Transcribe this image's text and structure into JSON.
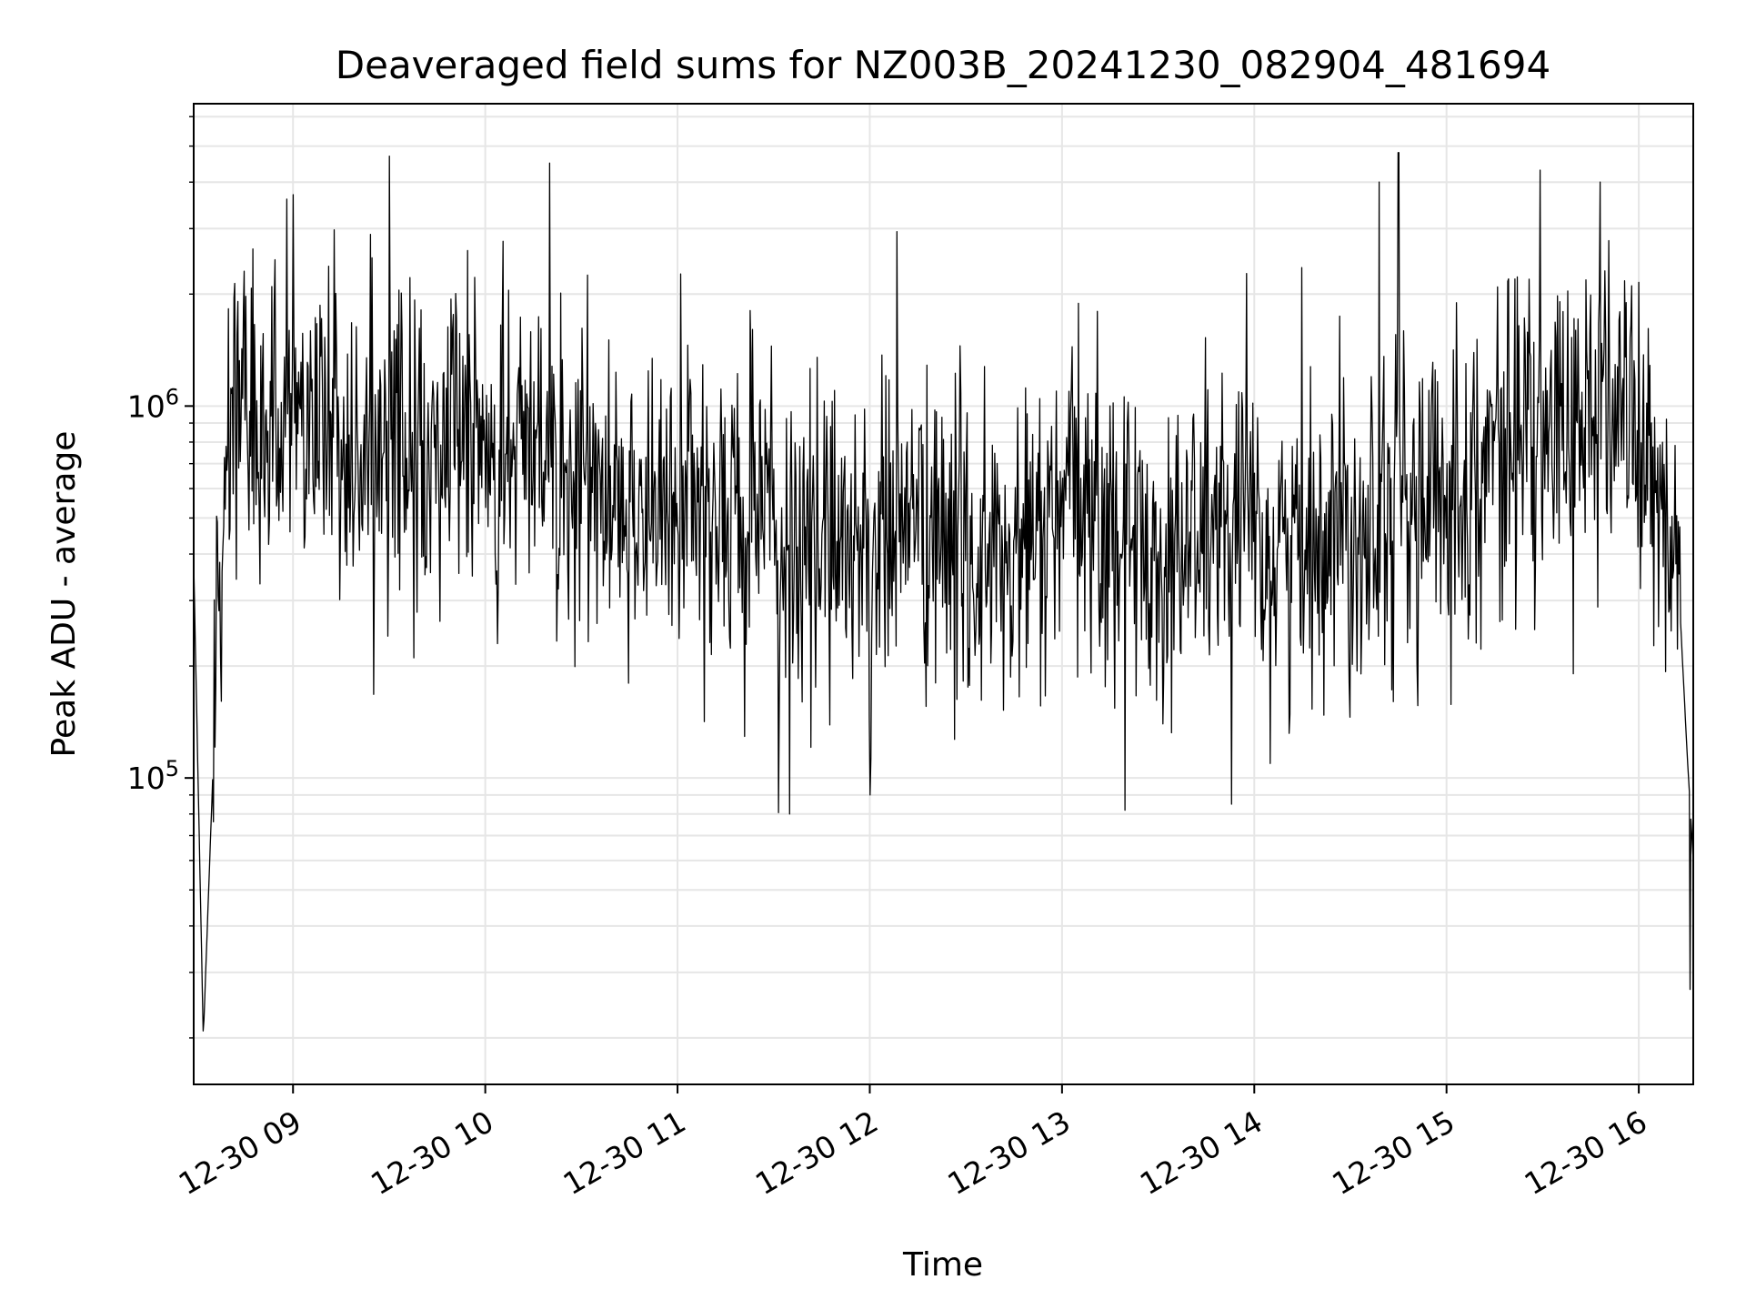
{
  "chart_data": {
    "type": "line",
    "title": "Deaveraged field sums for NZ003B_20241230_082904_481694",
    "xlabel": "Time",
    "ylabel": "Peak ADU - average",
    "y_scale": "log",
    "ylim": [
      15000,
      6500000
    ],
    "xlim": [
      "2024-12-30 08:29",
      "2024-12-30 16:17"
    ],
    "x_ticks": [
      "2024-12-30 09:00",
      "2024-12-30 10:00",
      "2024-12-30 11:00",
      "2024-12-30 12:00",
      "2024-12-30 13:00",
      "2024-12-30 14:00",
      "2024-12-30 15:00",
      "2024-12-30 16:00"
    ],
    "x_tick_labels": [
      "12-30 09",
      "12-30 10",
      "12-30 11",
      "12-30 12",
      "12-30 13",
      "12-30 14",
      "12-30 15",
      "12-30 16"
    ],
    "y_ticks": [
      100000,
      1000000
    ],
    "y_tick_exponents": [
      "5",
      "6"
    ],
    "y_tick_base": "10",
    "grid": true,
    "line_color": "#000000",
    "grid_color": "#e6e6e6",
    "series": [
      {
        "x": [
          "2024-12-30 08:29",
          "2024-12-30 08:32",
          "2024-12-30 08:36",
          "2024-12-30 08:40",
          "2024-12-30 08:45",
          "2024-12-30 08:50",
          "2024-12-30 08:55",
          "2024-12-30 09:00",
          "2024-12-30 09:04",
          "2024-12-30 09:08",
          "2024-12-30 09:13",
          "2024-12-30 09:18",
          "2024-12-30 09:24",
          "2024-12-30 09:30",
          "2024-12-30 09:36",
          "2024-12-30 09:42",
          "2024-12-30 09:48",
          "2024-12-30 09:54",
          "2024-12-30 10:00",
          "2024-12-30 10:06",
          "2024-12-30 10:12",
          "2024-12-30 10:18",
          "2024-12-30 10:24",
          "2024-12-30 10:30",
          "2024-12-30 10:36",
          "2024-12-30 10:42",
          "2024-12-30 10:48",
          "2024-12-30 10:54",
          "2024-12-30 11:00",
          "2024-12-30 11:06",
          "2024-12-30 11:12",
          "2024-12-30 11:18",
          "2024-12-30 11:24",
          "2024-12-30 11:30",
          "2024-12-30 11:35",
          "2024-12-30 11:40",
          "2024-12-30 11:45",
          "2024-12-30 11:50",
          "2024-12-30 11:55",
          "2024-12-30 12:00",
          "2024-12-30 12:06",
          "2024-12-30 12:12",
          "2024-12-30 12:18",
          "2024-12-30 12:24",
          "2024-12-30 12:30",
          "2024-12-30 12:36",
          "2024-12-30 12:42",
          "2024-12-30 12:48",
          "2024-12-30 12:54",
          "2024-12-30 13:00",
          "2024-12-30 13:06",
          "2024-12-30 13:12",
          "2024-12-30 13:18",
          "2024-12-30 13:24",
          "2024-12-30 13:30",
          "2024-12-30 13:36",
          "2024-12-30 13:42",
          "2024-12-30 13:48",
          "2024-12-30 13:54",
          "2024-12-30 14:00",
          "2024-12-30 14:06",
          "2024-12-30 14:12",
          "2024-12-30 14:18",
          "2024-12-30 14:24",
          "2024-12-30 14:30",
          "2024-12-30 14:36",
          "2024-12-30 14:42",
          "2024-12-30 14:48",
          "2024-12-30 14:54",
          "2024-12-30 15:00",
          "2024-12-30 15:06",
          "2024-12-30 15:12",
          "2024-12-30 15:18",
          "2024-12-30 15:24",
          "2024-12-30 15:30",
          "2024-12-30 15:36",
          "2024-12-30 15:42",
          "2024-12-30 15:48",
          "2024-12-30 15:54",
          "2024-12-30 16:00",
          "2024-12-30 16:04",
          "2024-12-30 16:08",
          "2024-12-30 16:12",
          "2024-12-30 16:15",
          "2024-12-30 16:17"
        ],
        "y": [
          380000,
          20000,
          180000,
          900000,
          1100000,
          700000,
          900000,
          1200000,
          800000,
          1000000,
          900000,
          700000,
          800000,
          1000000,
          700000,
          650000,
          800000,
          900000,
          700000,
          650000,
          800000,
          900000,
          600000,
          650000,
          550000,
          600000,
          550000,
          500000,
          520000,
          600000,
          450000,
          500000,
          550000,
          420000,
          400000,
          380000,
          450000,
          500000,
          420000,
          400000,
          480000,
          520000,
          450000,
          400000,
          420000,
          380000,
          350000,
          400000,
          450000,
          500000,
          550000,
          500000,
          450000,
          420000,
          380000,
          400000,
          450000,
          500000,
          420000,
          450000,
          400000,
          420000,
          450000,
          500000,
          480000,
          520000,
          600000,
          550000,
          500000,
          600000,
          650000,
          700000,
          800000,
          900000,
          750000,
          850000,
          1000000,
          900000,
          1100000,
          800000,
          600000,
          500000,
          400000,
          120000,
          60000
        ]
      }
    ],
    "spikes_high": [
      {
        "x": "2024-12-30 09:00",
        "y": 3700000
      },
      {
        "x": "2024-12-30 09:30",
        "y": 4700000
      },
      {
        "x": "2024-12-30 10:20",
        "y": 4500000
      },
      {
        "x": "2024-12-30 14:39",
        "y": 4000000
      },
      {
        "x": "2024-12-30 14:45",
        "y": 4800000
      },
      {
        "x": "2024-12-30 15:48",
        "y": 4000000
      }
    ],
    "spikes_low": [
      {
        "x": "2024-12-30 11:35",
        "y": 80000
      },
      {
        "x": "2024-12-30 12:00",
        "y": 90000
      },
      {
        "x": "2024-12-30 13:53",
        "y": 85000
      },
      {
        "x": "2024-12-30 16:16",
        "y": 27000
      }
    ]
  }
}
